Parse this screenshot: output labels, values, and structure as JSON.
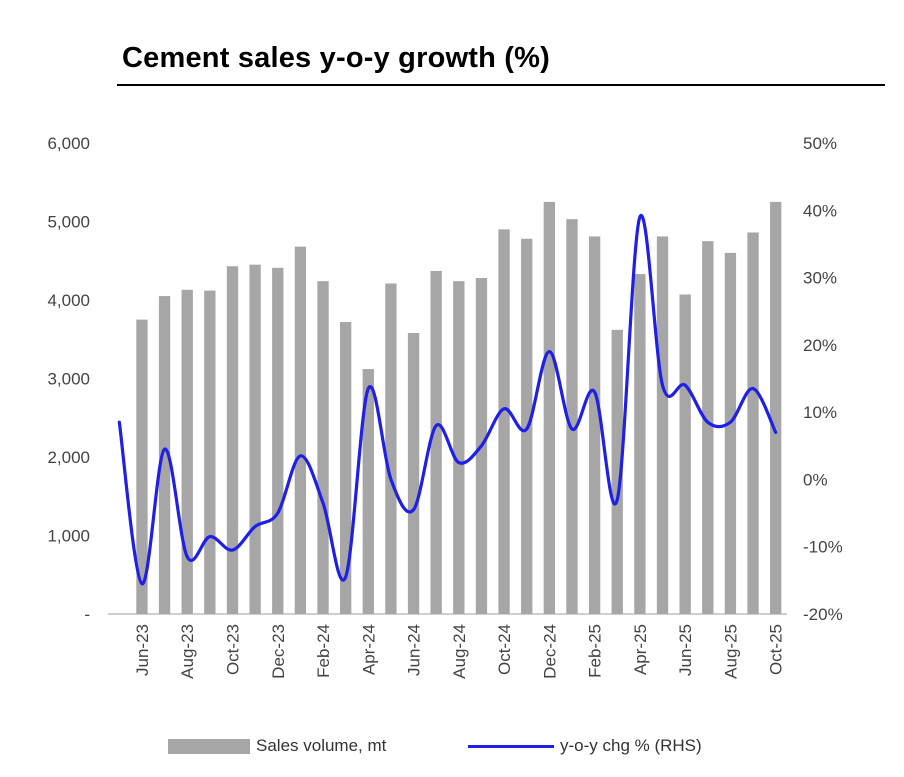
{
  "colors": {
    "bar": "#a6a6a6",
    "line": "#1f1fe6",
    "axis": "#bfbfbf",
    "text": "#444444"
  },
  "chart_data": {
    "type": "bar+line",
    "title": "Cement sales y-o-y growth (%)",
    "categories": [
      "May-23",
      "Jun-23",
      "Jul-23",
      "Aug-23",
      "Sep-23",
      "Oct-23",
      "Nov-23",
      "Dec-23",
      "Jan-24",
      "Feb-24",
      "Mar-24",
      "Apr-24",
      "May-24",
      "Jun-24",
      "Jul-24",
      "Aug-24",
      "Sep-24",
      "Oct-24",
      "Nov-24",
      "Dec-24",
      "Jan-25",
      "Feb-25",
      "Mar-25",
      "Apr-25",
      "May-25",
      "Jun-25",
      "Jul-25",
      "Aug-25",
      "Sep-25",
      "Oct-25"
    ],
    "x_tick_labels": [
      "Jun-23",
      "Aug-23",
      "Oct-23",
      "Dec-23",
      "Feb-24",
      "Apr-24",
      "Jun-24",
      "Aug-24",
      "Oct-24",
      "Dec-24",
      "Feb-25",
      "Apr-25",
      "Jun-25",
      "Aug-25",
      "Oct-25"
    ],
    "y_left": {
      "min": 0,
      "max": 6000,
      "ticks": [
        0,
        1000,
        2000,
        3000,
        4000,
        5000,
        6000
      ],
      "tick_labels": [
        "-",
        "1,000",
        "2,000",
        "3,000",
        "4,000",
        "5,000",
        "6,000"
      ]
    },
    "y_right": {
      "min": -20,
      "max": 50,
      "ticks": [
        -20,
        -10,
        0,
        10,
        20,
        30,
        40,
        50
      ],
      "tick_labels": [
        "-20%",
        "-10%",
        "0%",
        "10%",
        "20%",
        "30%",
        "40%",
        "50%"
      ]
    },
    "series": [
      {
        "name": "Sales volume, mt",
        "type": "bar",
        "axis": "left",
        "values": [
          null,
          3750,
          4050,
          4130,
          4120,
          4430,
          4450,
          4410,
          4680,
          4240,
          3720,
          3120,
          4210,
          3580,
          4370,
          4240,
          4280,
          4900,
          4780,
          5250,
          5030,
          4810,
          3620,
          4330,
          4810,
          4070,
          4750,
          4600,
          4860,
          5250
        ]
      },
      {
        "name": "y-o-y chg % (RHS)",
        "type": "line",
        "axis": "right",
        "values": [
          8.5,
          -15.5,
          4.5,
          -11.5,
          -8.5,
          -10.5,
          -7.0,
          -5.0,
          3.5,
          -3.5,
          -14.5,
          13.5,
          0.0,
          -4.5,
          8.0,
          2.5,
          5.0,
          10.5,
          7.5,
          19.0,
          7.5,
          13.0,
          -3.0,
          39.0,
          14.0,
          14.0,
          8.5,
          8.5,
          13.5,
          7.0
        ]
      }
    ],
    "legend": [
      "Sales volume, mt",
      "y-o-y chg % (RHS)"
    ]
  }
}
